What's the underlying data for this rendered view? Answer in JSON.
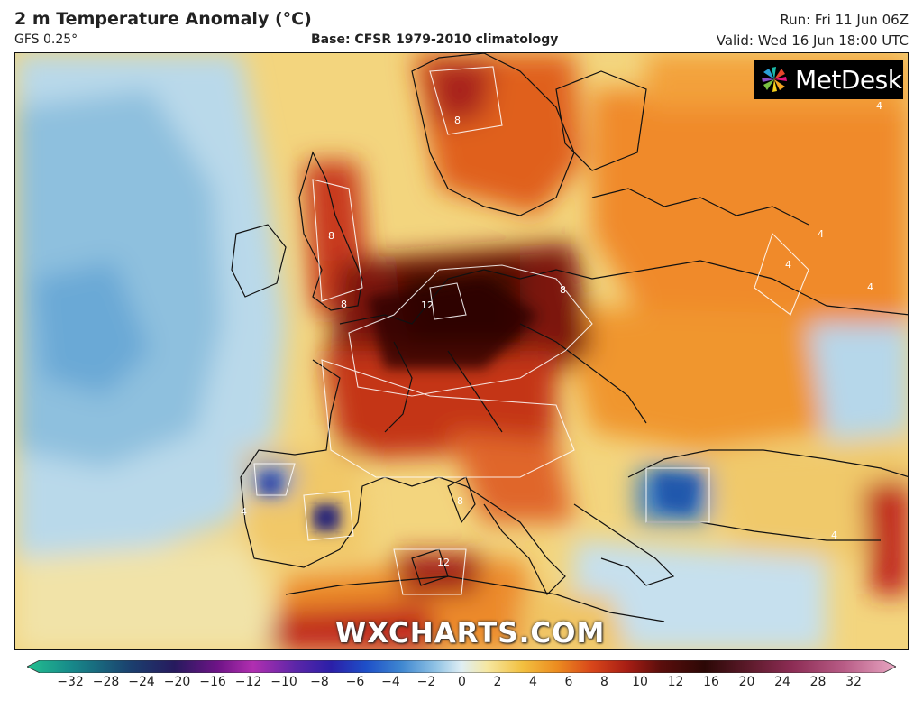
{
  "header": {
    "title": "2 m Temperature Anomaly (°C)",
    "model": "GFS 0.25°",
    "base": "Base: CFSR 1979-2010 climatology",
    "run": "Run: Fri 11 Jun 06Z",
    "valid": "Valid: Wed 16 Jun 18:00 UTC"
  },
  "logo": {
    "text": "MetDesk",
    "icon": "metdesk-pinwheel-icon"
  },
  "watermark": "WXCHARTS.COM",
  "map_labels": {
    "germany": "12",
    "algeria": "12",
    "scandinavia": "8",
    "britain_n": "8",
    "britain_s": "8",
    "central_eu": "8",
    "corsica": "8",
    "iberia": "4",
    "russia_1": "4",
    "russia_2": "4",
    "russia_3": "4",
    "anatolia": "4",
    "finland": "4"
  },
  "colorbar": {
    "ticks": [
      "−32",
      "−28",
      "−24",
      "−20",
      "−16",
      "−12",
      "−10",
      "−8",
      "−6",
      "−4",
      "−2",
      "0",
      "2",
      "4",
      "6",
      "8",
      "10",
      "12",
      "16",
      "20",
      "24",
      "28",
      "32"
    ],
    "colors": [
      "#23c08f",
      "#178a8a",
      "#1b3f6e",
      "#271a5e",
      "#6f1487",
      "#b12fb0",
      "#5a26a8",
      "#2b1fa8",
      "#1e4fc8",
      "#3e86d0",
      "#8fc2e4",
      "#dfeef4",
      "#f6e7a0",
      "#f2c040",
      "#ec8c20",
      "#d8461a",
      "#a81e14",
      "#5a0e0c",
      "#2c0806",
      "#5c1a2a",
      "#8c2c54",
      "#b85c86",
      "#e8a6c2"
    ]
  }
}
